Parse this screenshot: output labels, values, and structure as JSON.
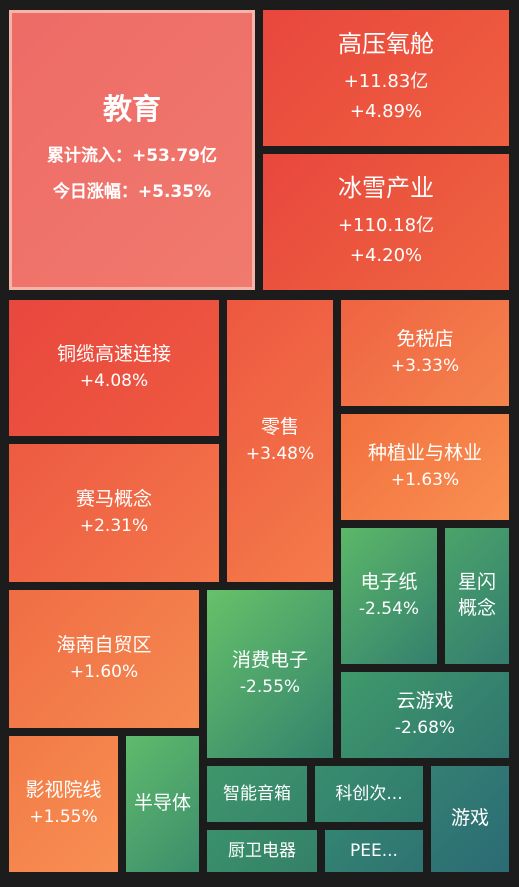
{
  "chart_data": {
    "type": "treemap",
    "title": "",
    "items": [
      {
        "name": "教育",
        "inflow": "+53.79亿",
        "change": "+5.35%",
        "inflow_label": "累计流入：",
        "change_label": "今日涨幅：",
        "color": "#ee6b66",
        "featured": true
      },
      {
        "name": "高压氧舱",
        "inflow": "+11.83亿",
        "change": "+4.89%",
        "color_from": "#e8473d",
        "color_to": "#ef6040"
      },
      {
        "name": "冰雪产业",
        "inflow": "+110.18亿",
        "change": "+4.20%",
        "color_from": "#e8473d",
        "color_to": "#ef6540"
      },
      {
        "name": "铜缆高速连接",
        "change": "+4.08%",
        "color_from": "#e8473d",
        "color_to": "#ef5a41"
      },
      {
        "name": "零售",
        "change": "+3.48%",
        "color_from": "#ed5840",
        "color_to": "#f57b4a"
      },
      {
        "name": "免税店",
        "change": "+3.33%",
        "color_from": "#ef6342",
        "color_to": "#f5844d"
      },
      {
        "name": "种植业与林业",
        "change": "+1.63%",
        "color_from": "#f2703f",
        "color_to": "#f99051"
      },
      {
        "name": "赛马概念",
        "change": "+2.31%",
        "color_from": "#ed5a42",
        "color_to": "#f4774a"
      },
      {
        "name": "海南自贸区",
        "change": "+1.60%",
        "color_from": "#f06d45",
        "color_to": "#f58a4f"
      },
      {
        "name": "影视院线",
        "change": "+1.55%",
        "color_from": "#f27a47",
        "color_to": "#f88f52"
      },
      {
        "name": "电子纸",
        "change": "-2.54%",
        "color_from": "#5cb868",
        "color_to": "#34806e"
      },
      {
        "name": "星闪概念",
        "change": "",
        "color_from": "#4aa46a",
        "color_to": "#347c70"
      },
      {
        "name": "消费电子",
        "change": "-2.55%",
        "color_from": "#66c26a",
        "color_to": "#33826c"
      },
      {
        "name": "云游戏",
        "change": "-2.68%",
        "color_from": "#3f9a6a",
        "color_to": "#307570"
      },
      {
        "name": "半导体",
        "change": "",
        "color_from": "#5fbb6c",
        "color_to": "#3c8d6c"
      },
      {
        "name": "智能音箱",
        "change": "",
        "color_from": "#3e966b",
        "color_to": "#37856c"
      },
      {
        "name": "科创次...",
        "change": "",
        "color_from": "#388d6d",
        "color_to": "#307a6f"
      },
      {
        "name": "游戏",
        "change": "",
        "color_from": "#347f73",
        "color_to": "#2b6b74"
      },
      {
        "name": "厨卫电器",
        "change": "",
        "color_from": "#3a916b",
        "color_to": "#348069"
      },
      {
        "name": "PEE...",
        "change": "",
        "color_from": "#348472",
        "color_to": "#2e7372"
      }
    ]
  }
}
